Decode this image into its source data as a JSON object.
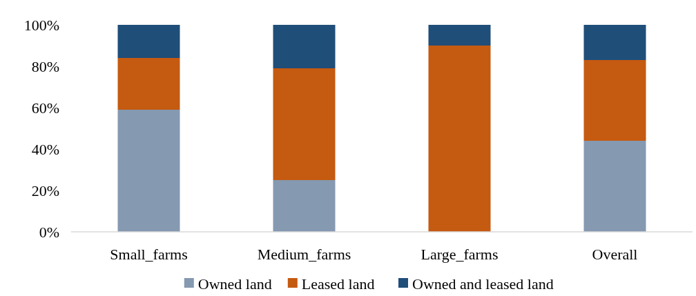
{
  "chart_data": {
    "type": "bar",
    "stacked": true,
    "categories": [
      "Small_farms",
      "Medium_farms",
      "Large_farms",
      "Overall"
    ],
    "series": [
      {
        "name": "Owned land",
        "color": "#8599b1",
        "values": [
          59,
          25,
          0,
          44
        ]
      },
      {
        "name": "Leased land",
        "color": "#c55a11",
        "values": [
          25,
          54,
          90,
          39
        ]
      },
      {
        "name": "Owned and leased land",
        "color": "#1f4e79",
        "values": [
          16,
          21,
          10,
          17
        ]
      }
    ],
    "ylim": [
      0,
      100
    ],
    "yticks": [
      {
        "value": 0,
        "label": "0%"
      },
      {
        "value": 20,
        "label": "20%"
      },
      {
        "value": 40,
        "label": "40%"
      },
      {
        "value": 60,
        "label": "60%"
      },
      {
        "value": 80,
        "label": "80%"
      },
      {
        "value": 100,
        "label": "100%"
      }
    ],
    "grid": false,
    "legend": "bottom"
  }
}
